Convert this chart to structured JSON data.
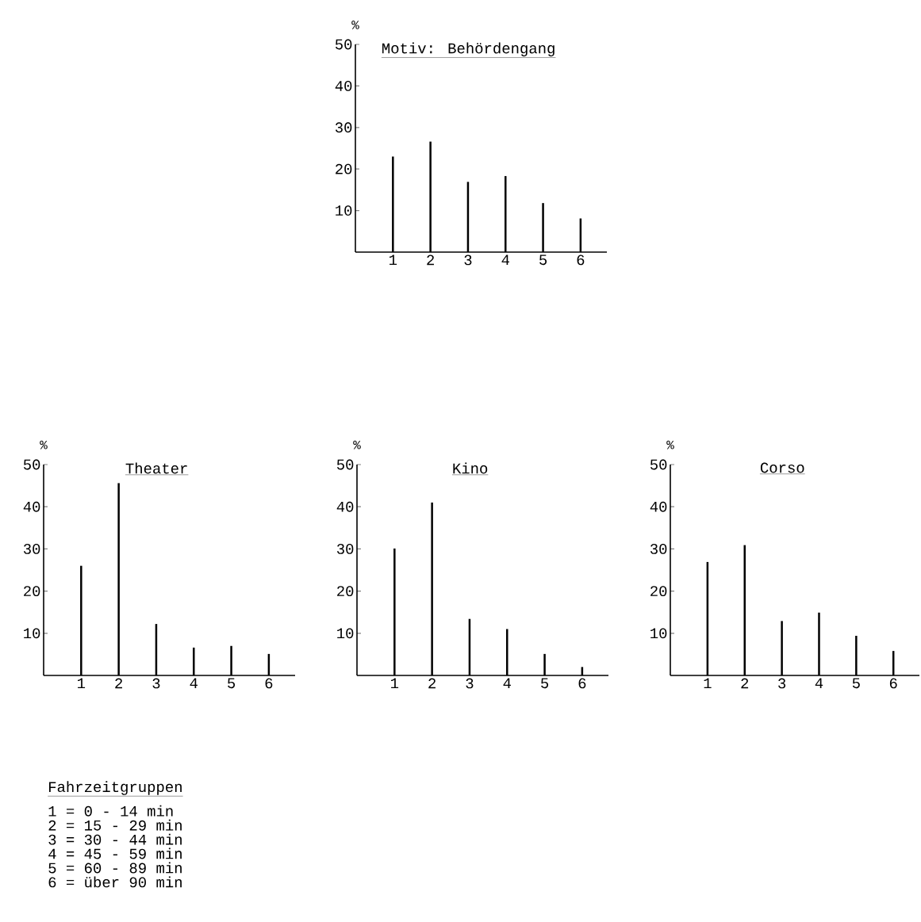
{
  "chart_data": [
    {
      "type": "bar",
      "title": "Motiv: Behördengang",
      "ylabel": "%",
      "categories": [
        "1",
        "2",
        "3",
        "4",
        "5",
        "6"
      ],
      "color": "#000000",
      "values": [
        23.0,
        26.6,
        16.9,
        18.3,
        11.8,
        8.1
      ],
      "ylim": [
        0,
        50
      ],
      "yticks": [
        10,
        20,
        30,
        40,
        50
      ]
    },
    {
      "type": "bar",
      "title": "Theater",
      "ylabel": "%",
      "categories": [
        "1",
        "2",
        "3",
        "4",
        "5",
        "6"
      ],
      "color": "#000000",
      "values": [
        26.0,
        45.6,
        12.2,
        6.6,
        7.0,
        5.1
      ],
      "ylim": [
        0,
        50
      ],
      "yticks": [
        10,
        20,
        30,
        40,
        50
      ]
    },
    {
      "type": "bar",
      "title": "Kino",
      "ylabel": "%",
      "categories": [
        "1",
        "2",
        "3",
        "4",
        "5",
        "6"
      ],
      "color": "#000000",
      "values": [
        30.1,
        41.0,
        13.4,
        11.0,
        5.1,
        2.0
      ],
      "ylim": [
        0,
        50
      ],
      "yticks": [
        10,
        20,
        30,
        40,
        50
      ]
    },
    {
      "type": "bar",
      "title": "Corso",
      "ylabel": "%",
      "categories": [
        "1",
        "2",
        "3",
        "4",
        "5",
        "6"
      ],
      "color": "#000000",
      "values": [
        26.9,
        30.9,
        12.9,
        14.9,
        9.4,
        5.8
      ],
      "ylim": [
        0,
        50
      ],
      "yticks": [
        10,
        20,
        30,
        40,
        50
      ]
    },
    {
      "type": "other",
      "title": "Fahrzeitgruppen",
      "annotations": [
        "1 = 0 - 14 min",
        "2 = 15 - 29 min",
        "3 = 30 - 44 min",
        "4 = 45 - 59 min",
        "5 = 60 - 89 min",
        "6 = über 90 min"
      ]
    }
  ]
}
